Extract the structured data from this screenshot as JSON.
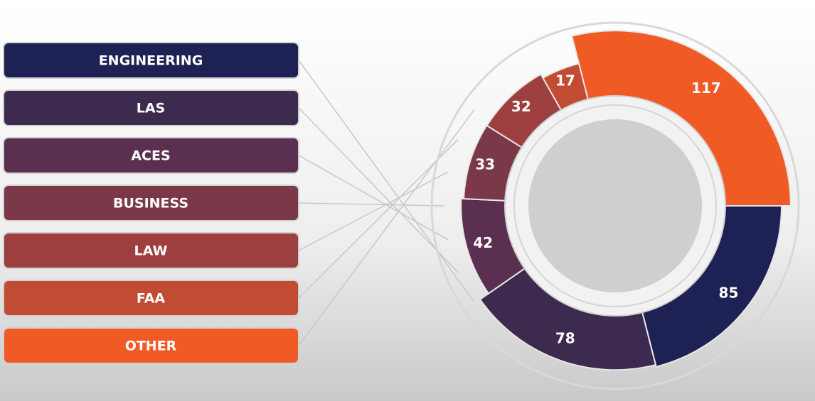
{
  "chart_data": {
    "type": "pie",
    "categories": [
      "ENGINEERING",
      "LAS",
      "ACES",
      "BUSINESS",
      "LAW",
      "FAA",
      "OTHER"
    ],
    "values": [
      85,
      78,
      42,
      33,
      32,
      17,
      117
    ],
    "colors": [
      "#1e2153",
      "#3d2a4f",
      "#5a2f4f",
      "#7a3848",
      "#9c3f3e",
      "#c24c33",
      "#f05a24"
    ]
  }
}
